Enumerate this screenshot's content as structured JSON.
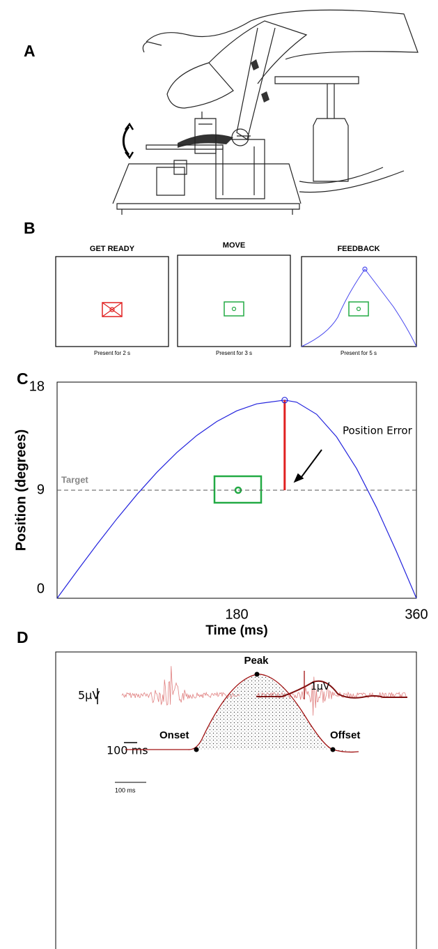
{
  "panels": {
    "a": {
      "label": "A"
    },
    "b": {
      "label": "B",
      "screens": [
        {
          "title": "GET READY",
          "caption": "Present for 2 s"
        },
        {
          "title": "MOVE",
          "caption": "Present for 3 s"
        },
        {
          "title": "FEEDBACK",
          "caption": "Present for 5 s"
        }
      ]
    },
    "c": {
      "label": "C"
    },
    "d": {
      "label": "D",
      "amplitude_scale": "5µV",
      "time_scale": "100 ms",
      "peak": "Peak",
      "envelope_scale": "1µV",
      "onset": "Onset",
      "offset": "Offset",
      "envelope_time_scale": "100 ms"
    }
  },
  "chart_data": {
    "type": "line",
    "xlabel": "Time (ms)",
    "ylabel": "Position (degrees)",
    "x": [
      0,
      20,
      40,
      60,
      80,
      100,
      120,
      140,
      160,
      180,
      200,
      228,
      240,
      260,
      280,
      300,
      320,
      340,
      360
    ],
    "values": [
      0,
      2.27,
      4.49,
      6.63,
      8.64,
      10.49,
      12.14,
      13.56,
      14.72,
      15.61,
      16.19,
      16.5,
      16.33,
      15.32,
      13.44,
      10.81,
      7.56,
      3.89,
      0
    ],
    "color": "#2222dd",
    "xlim": [
      0,
      360
    ],
    "ylim": [
      0,
      18
    ],
    "xticks": [
      180,
      360
    ],
    "yticks": [
      0,
      9,
      18
    ],
    "target": 9,
    "target_label": "Target",
    "target_color": "#888888",
    "peak": {
      "x": 228,
      "y": 16.5
    },
    "error_color": "#e02020",
    "annotation": "Position Error"
  }
}
